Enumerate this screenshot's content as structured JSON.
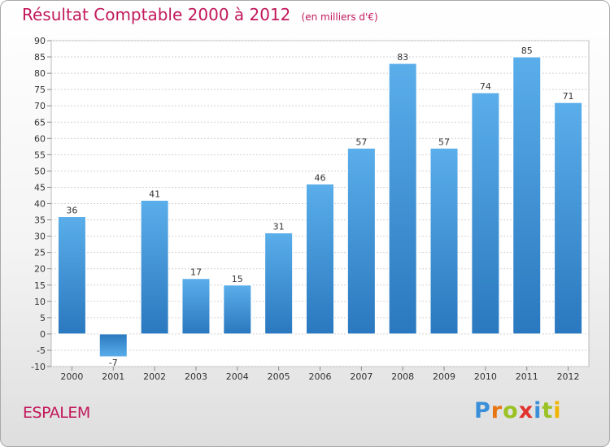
{
  "chart_data": {
    "type": "bar",
    "title": "Résultat Comptable 2000 à 2012",
    "subtitle": "(en milliers d'€)",
    "categories": [
      "2000",
      "2001",
      "2002",
      "2003",
      "2004",
      "2005",
      "2006",
      "2007",
      "2008",
      "2009",
      "2010",
      "2011",
      "2012"
    ],
    "values": [
      36,
      -7,
      41,
      17,
      15,
      31,
      46,
      57,
      83,
      57,
      74,
      85,
      71
    ],
    "ylim": [
      -10,
      90
    ],
    "yticks": [
      -10,
      -5,
      0,
      5,
      10,
      15,
      20,
      25,
      30,
      35,
      40,
      45,
      50,
      55,
      60,
      65,
      70,
      75,
      80,
      85,
      90
    ],
    "xlabel": "",
    "ylabel": "",
    "grid": true,
    "legend": "none",
    "bar_color": "#4c9ee0"
  },
  "footer": {
    "commune": "ESPALEM",
    "logo_letters": [
      "P",
      "r",
      "o",
      "x",
      "i",
      "t",
      "i"
    ],
    "logo_colors": [
      "#3b8fd9",
      "#e87511",
      "#9ac222",
      "#e2322f",
      "#3b8fd9",
      "#9ac222",
      "#f0b400"
    ]
  }
}
